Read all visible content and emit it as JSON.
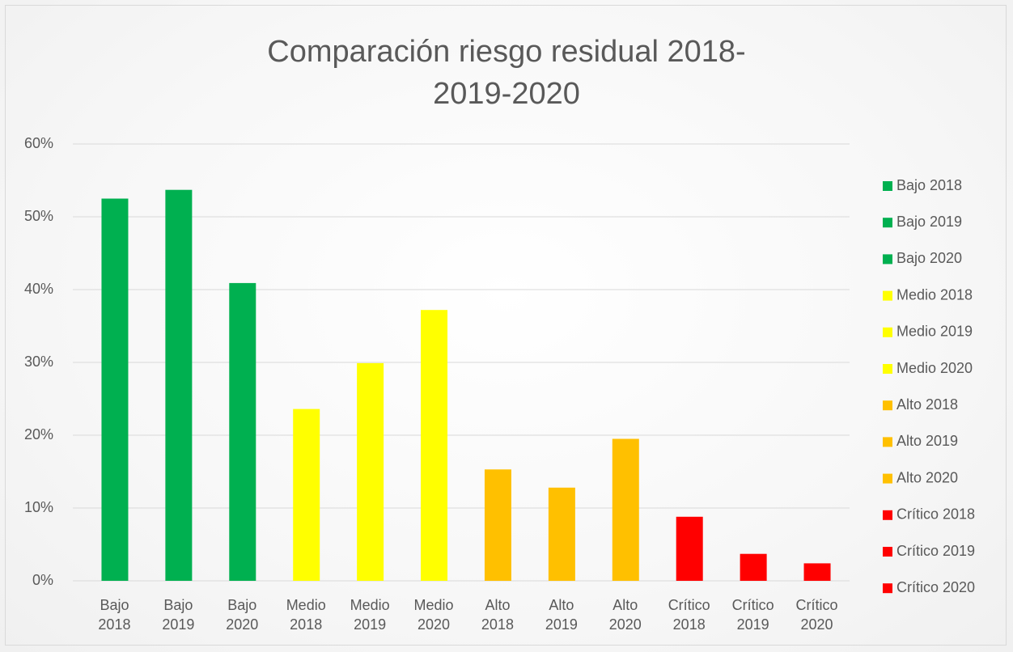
{
  "chart_data": {
    "type": "bar",
    "title": "Comparación riesgo residual 2018-2019-2020",
    "categories": [
      "Bajo 2018",
      "Bajo 2019",
      "Bajo 2020",
      "Medio 2018",
      "Medio 2019",
      "Medio 2020",
      "Alto 2018",
      "Alto 2019",
      "Alto 2020",
      "Crítico 2018",
      "Crítico 2019",
      "Crítico 2020"
    ],
    "values": [
      52.5,
      53.7,
      40.9,
      23.6,
      29.9,
      37.2,
      15.3,
      12.8,
      19.5,
      8.8,
      3.7,
      2.4
    ],
    "colors": [
      "#00b050",
      "#00b050",
      "#00b050",
      "#ffff00",
      "#ffff00",
      "#ffff00",
      "#ffc000",
      "#ffc000",
      "#ffc000",
      "#ff0000",
      "#ff0000",
      "#ff0000"
    ],
    "ylim": [
      0,
      60
    ],
    "yticks": [
      {
        "value": 0,
        "label": "0%"
      },
      {
        "value": 10,
        "label": "10%"
      },
      {
        "value": 20,
        "label": "20%"
      },
      {
        "value": 30,
        "label": "30%"
      },
      {
        "value": 40,
        "label": "40%"
      },
      {
        "value": 50,
        "label": "50%"
      },
      {
        "value": 60,
        "label": "60%"
      }
    ],
    "grid": true,
    "legend": "right"
  }
}
